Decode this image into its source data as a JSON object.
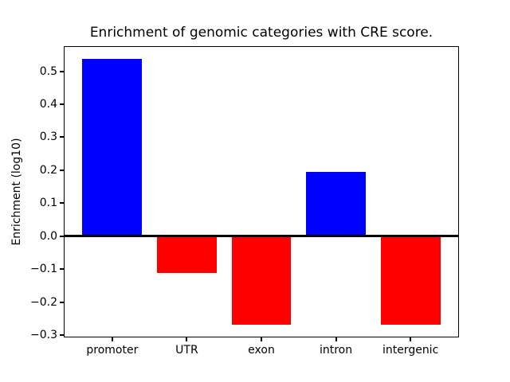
{
  "chart_data": {
    "type": "bar",
    "title": "Enrichment of genomic categories with CRE score.",
    "xlabel": "",
    "ylabel": "Enrichment (log10)",
    "categories": [
      "promoter",
      "UTR",
      "exon",
      "intron",
      "intergenic"
    ],
    "values": [
      0.537,
      -0.112,
      -0.27,
      0.196,
      -0.268
    ],
    "bar_colors": [
      "#0000ff",
      "#ff0000",
      "#ff0000",
      "#0000ff",
      "#ff0000"
    ],
    "positive_color": "#0000ff",
    "negative_color": "#ff0000",
    "bar_width": 0.8,
    "xlim": [
      -0.64,
      4.64
    ],
    "ylim": [
      -0.305,
      0.574
    ],
    "yticks": [
      {
        "v": 0.5,
        "label": "0.5"
      },
      {
        "v": 0.4,
        "label": "0.4"
      },
      {
        "v": 0.3,
        "label": "0.3"
      },
      {
        "v": 0.2,
        "label": "0.2"
      },
      {
        "v": 0.1,
        "label": "0.1"
      },
      {
        "v": 0.0,
        "label": "0.0"
      },
      {
        "v": -0.1,
        "label": "−0.1"
      },
      {
        "v": -0.2,
        "label": "−0.2"
      },
      {
        "v": -0.3,
        "label": "−0.3"
      }
    ],
    "zero_line": {
      "y": 0,
      "color": "#000000"
    },
    "grid": false,
    "legend": null,
    "background": "#ffffff"
  }
}
